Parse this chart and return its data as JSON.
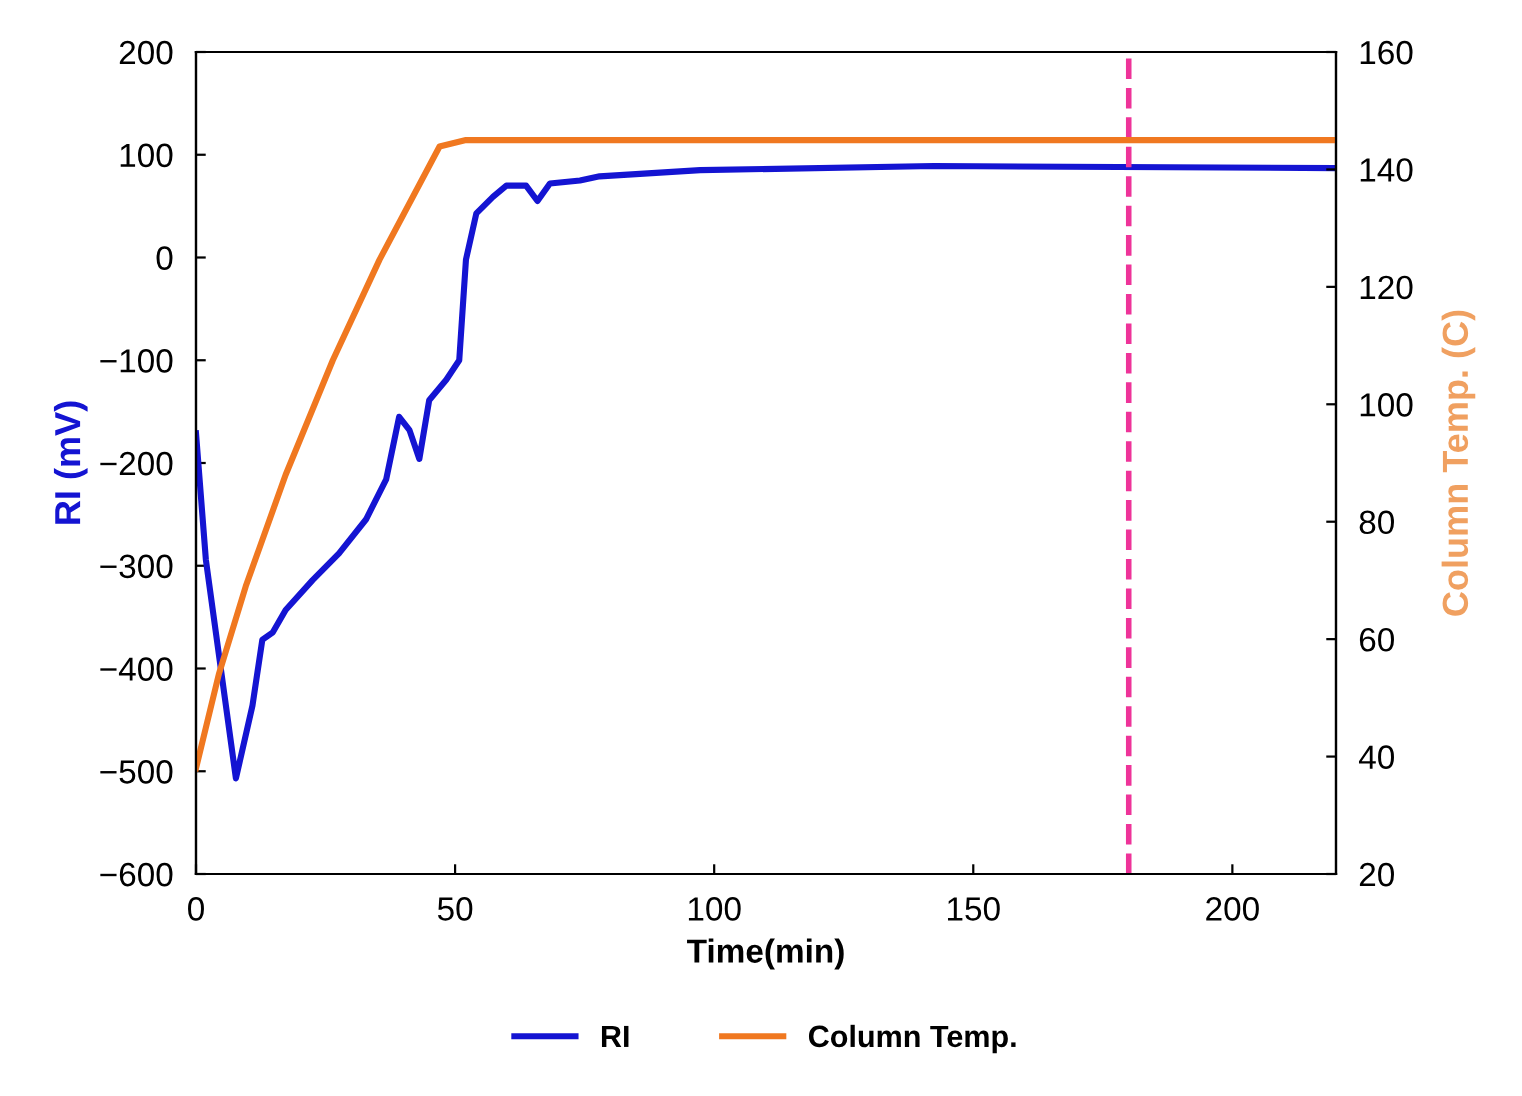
{
  "chart_data": {
    "type": "line",
    "xlabel": "Time(min)",
    "ylabel": "RI (mV)",
    "y2label": "Column Temp. (C)",
    "xlim": [
      0,
      220
    ],
    "xticks": [
      0,
      50,
      100,
      150,
      200
    ],
    "ylim": [
      -600,
      200
    ],
    "yticks": [
      -600,
      -500,
      -400,
      -300,
      -200,
      -100,
      0,
      100,
      200
    ],
    "y2lim": [
      20,
      160
    ],
    "y2ticks": [
      20,
      40,
      60,
      80,
      100,
      120,
      140,
      160
    ],
    "grid": false,
    "legend": "bottom",
    "line_style": "solid",
    "marker": "none",
    "series": [
      {
        "name": "RI",
        "color": "#1414d2",
        "x": [
          0,
          1.9,
          7.7,
          10.9,
          12.8,
          14.8,
          17.3,
          22.5,
          27.6,
          32.8,
          36.7,
          39.2,
          41.2,
          43.1,
          45.0,
          48.3,
          50.8,
          52.1,
          54.1,
          57.3,
          59.9,
          63.7,
          65.9,
          68.3,
          74.1,
          77.9,
          97.3,
          142.4,
          220
        ],
        "values": [
          -171,
          -294,
          -507,
          -436,
          -372,
          -365,
          -343,
          -314,
          -288,
          -255,
          -216,
          -155,
          -168,
          -196,
          -139,
          -119,
          -100,
          -2,
          43,
          59,
          70,
          70,
          55,
          72,
          75,
          79,
          85,
          89,
          87
        ]
      },
      {
        "name": "Column Temp.",
        "color": "#f07820",
        "axis": "y2",
        "x": [
          0,
          4.4,
          9.6,
          17.3,
          26.4,
          35.4,
          47.0,
          52.1,
          220
        ],
        "values": [
          38,
          54,
          69,
          88,
          107.5,
          124.6,
          143.9,
          145,
          145
        ]
      }
    ],
    "ref_lines": [
      {
        "axis": "x",
        "value": 180,
        "color": "#ee3399",
        "line_style": "dashed"
      }
    ]
  }
}
